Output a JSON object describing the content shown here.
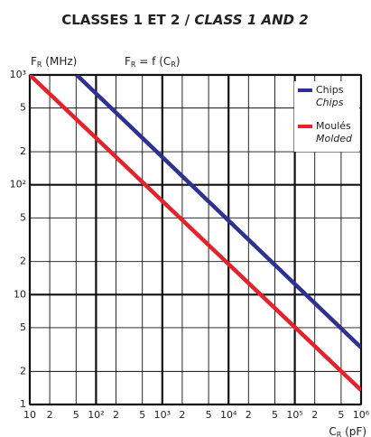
{
  "chart_data": {
    "type": "line",
    "title": [
      {
        "text": "CLASSES 1 ET 2 / "
      },
      {
        "text": "CLASS 1 AND 2",
        "italic": true
      }
    ],
    "y_label": [
      {
        "text": "F"
      },
      {
        "text": "R",
        "sub": true
      },
      {
        "text": " (MHz)"
      }
    ],
    "formula": [
      {
        "text": "F"
      },
      {
        "text": "R",
        "sub": true
      },
      {
        "text": " = f (C"
      },
      {
        "text": "R",
        "sub": true
      },
      {
        "text": ")"
      }
    ],
    "x_label": [
      {
        "text": "C"
      },
      {
        "text": "R",
        "sub": true
      },
      {
        "text": " (pF)"
      }
    ],
    "log_x": true,
    "log_y": true,
    "grid": true,
    "legend": "top-right",
    "xlim": [
      10,
      1000000
    ],
    "ylim": [
      1,
      1000
    ],
    "xticks": [
      10,
      {
        "value": 20,
        "label": "2"
      },
      {
        "value": 50,
        "label": "5"
      },
      {
        "value": 100,
        "label": "10²"
      },
      {
        "value": 200,
        "label": "2"
      },
      {
        "value": 500,
        "label": "5"
      },
      {
        "value": 1000,
        "label": "10³"
      },
      {
        "value": 2000,
        "label": "2"
      },
      {
        "value": 5000,
        "label": "5"
      },
      {
        "value": 10000,
        "label": "10⁴"
      },
      {
        "value": 20000,
        "label": "2"
      },
      {
        "value": 50000,
        "label": "5"
      },
      {
        "value": 100000,
        "label": "10⁵"
      },
      {
        "value": 200000,
        "label": "2"
      },
      {
        "value": 500000,
        "label": "5"
      },
      {
        "value": 1000000,
        "label": "10⁶"
      }
    ],
    "yticks": [
      1,
      2,
      5,
      10,
      {
        "value": 20,
        "label": "2"
      },
      {
        "value": 50,
        "label": "5"
      },
      {
        "value": 100,
        "label": "10²"
      },
      {
        "value": 200,
        "label": "2"
      },
      {
        "value": 500,
        "label": "5"
      },
      {
        "value": 1000,
        "label": "10³"
      }
    ],
    "series": [
      {
        "name": "Chips",
        "name_en": "Chips",
        "color": "#2e3192",
        "x": [
          51,
          1000000
        ],
        "values": [
          1000,
          3.3
        ]
      },
      {
        "name": "Moulés",
        "name_en": "Molded",
        "color": "#e8202a",
        "x": [
          10,
          1000000
        ],
        "values": [
          1000,
          1.35
        ]
      }
    ]
  }
}
